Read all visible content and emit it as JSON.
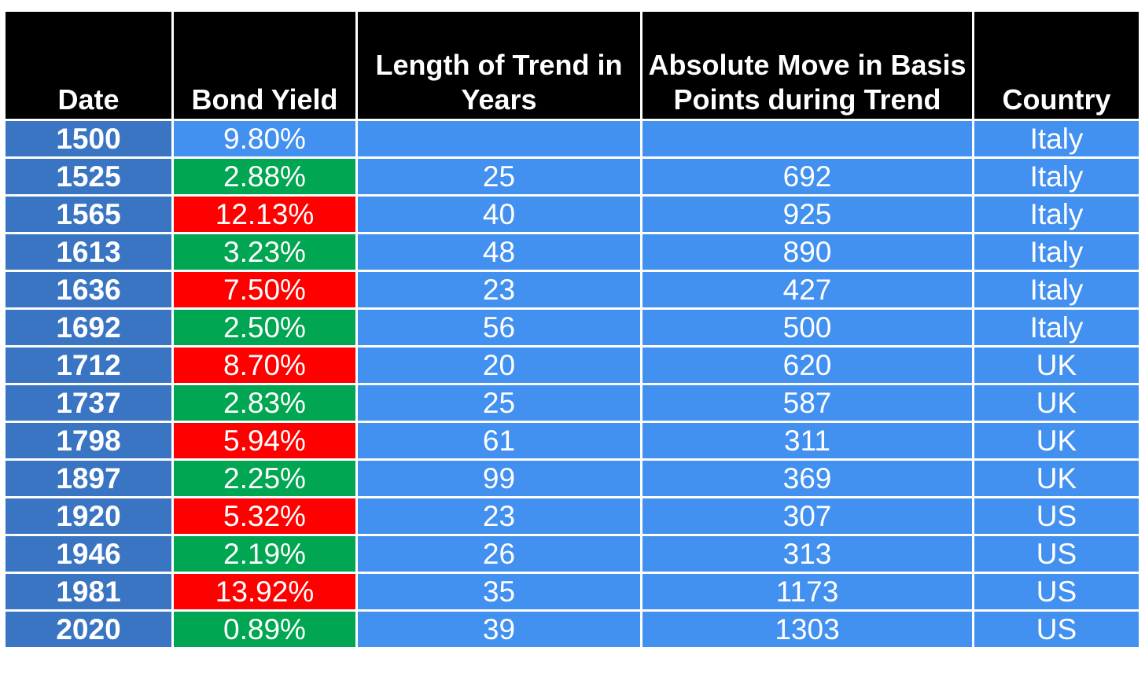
{
  "colors": {
    "header_bg": "#000000",
    "date_bg": "#3a75c4",
    "cell_bg": "#4290ef",
    "low_yield_bg": "#00a651",
    "high_yield_bg": "#ff0000",
    "text": "#ffffff"
  },
  "chart_data": {
    "type": "table",
    "columns": [
      "Date",
      "Bond Yield",
      "Length of Trend in Years",
      "Absolute Move in Basis Points during Trend",
      "Country"
    ],
    "rows": [
      {
        "date": "1500",
        "yield": "9.80%",
        "trend": "neutral",
        "length": "",
        "move": "",
        "country": "Italy"
      },
      {
        "date": "1525",
        "yield": "2.88%",
        "trend": "low",
        "length": "25",
        "move": "692",
        "country": "Italy"
      },
      {
        "date": "1565",
        "yield": "12.13%",
        "trend": "high",
        "length": "40",
        "move": "925",
        "country": "Italy"
      },
      {
        "date": "1613",
        "yield": "3.23%",
        "trend": "low",
        "length": "48",
        "move": "890",
        "country": "Italy"
      },
      {
        "date": "1636",
        "yield": "7.50%",
        "trend": "high",
        "length": "23",
        "move": "427",
        "country": "Italy"
      },
      {
        "date": "1692",
        "yield": "2.50%",
        "trend": "low",
        "length": "56",
        "move": "500",
        "country": "Italy"
      },
      {
        "date": "1712",
        "yield": "8.70%",
        "trend": "high",
        "length": "20",
        "move": "620",
        "country": "UK"
      },
      {
        "date": "1737",
        "yield": "2.83%",
        "trend": "low",
        "length": "25",
        "move": "587",
        "country": "UK"
      },
      {
        "date": "1798",
        "yield": "5.94%",
        "trend": "high",
        "length": "61",
        "move": "311",
        "country": "UK"
      },
      {
        "date": "1897",
        "yield": "2.25%",
        "trend": "low",
        "length": "99",
        "move": "369",
        "country": "UK"
      },
      {
        "date": "1920",
        "yield": "5.32%",
        "trend": "high",
        "length": "23",
        "move": "307",
        "country": "US"
      },
      {
        "date": "1946",
        "yield": "2.19%",
        "trend": "low",
        "length": "26",
        "move": "313",
        "country": "US"
      },
      {
        "date": "1981",
        "yield": "13.92%",
        "trend": "high",
        "length": "35",
        "move": "1173",
        "country": "US"
      },
      {
        "date": "2020",
        "yield": "0.89%",
        "trend": "low",
        "length": "39",
        "move": "1303",
        "country": "US"
      }
    ]
  }
}
